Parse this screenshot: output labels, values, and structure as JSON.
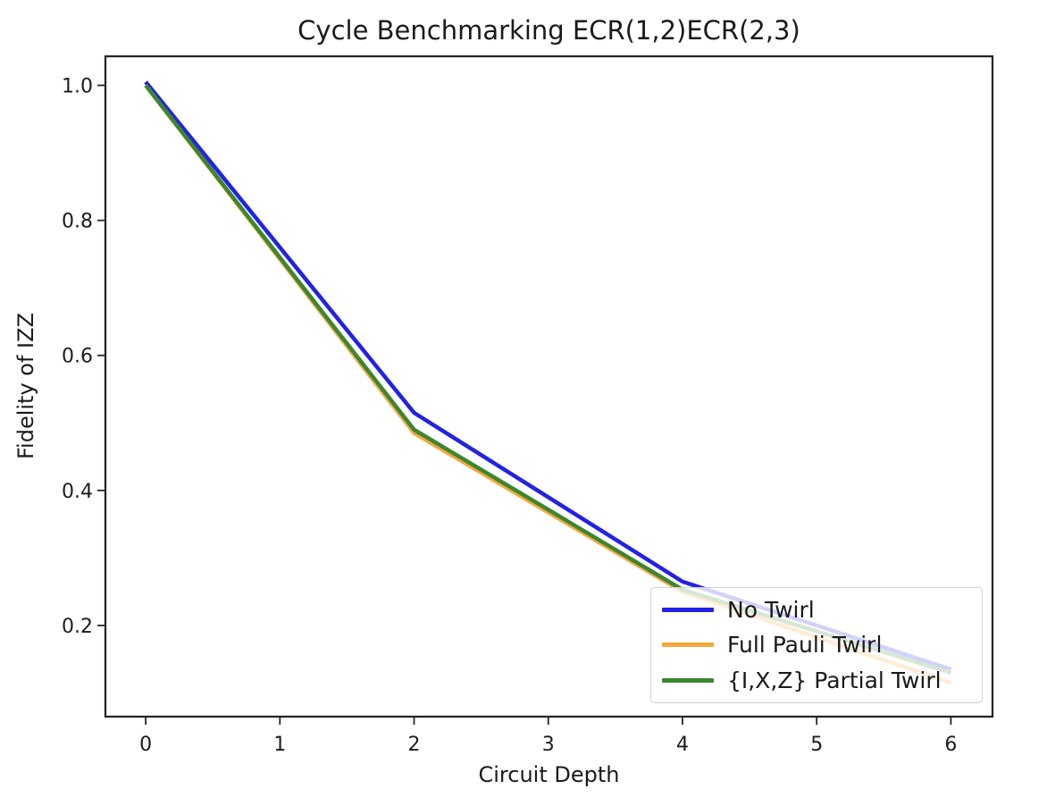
{
  "chart_data": {
    "type": "line",
    "title": "Cycle Benchmarking ECR(1,2)ECR(2,3)",
    "xlabel": "Circuit Depth",
    "ylabel": "Fidelity of IZZ",
    "x": [
      0,
      2,
      4,
      6
    ],
    "series": [
      {
        "name": "No Twirl",
        "color": "#2222e6",
        "values": [
          1.005,
          0.515,
          0.265,
          0.135
        ]
      },
      {
        "name": "Full Pauli Twirl",
        "color": "#f7a63e",
        "values": [
          1.0,
          0.485,
          0.25,
          0.115
        ]
      },
      {
        "name": "{I,X,Z} Partial Twirl",
        "color": "#3b872f",
        "values": [
          1.0,
          0.49,
          0.253,
          0.13
        ]
      }
    ],
    "xticks": [
      0,
      1,
      2,
      3,
      4,
      5,
      6
    ],
    "yticks": [
      0.2,
      0.4,
      0.6,
      0.8,
      1.0
    ],
    "xlim": [
      -0.3,
      6.31
    ],
    "ylim": [
      0.065,
      1.043
    ],
    "grid": false,
    "legend": {
      "position": "lower right",
      "frame_alpha": 0.8
    },
    "line_width": 4.5,
    "axis_color": "#262626"
  }
}
